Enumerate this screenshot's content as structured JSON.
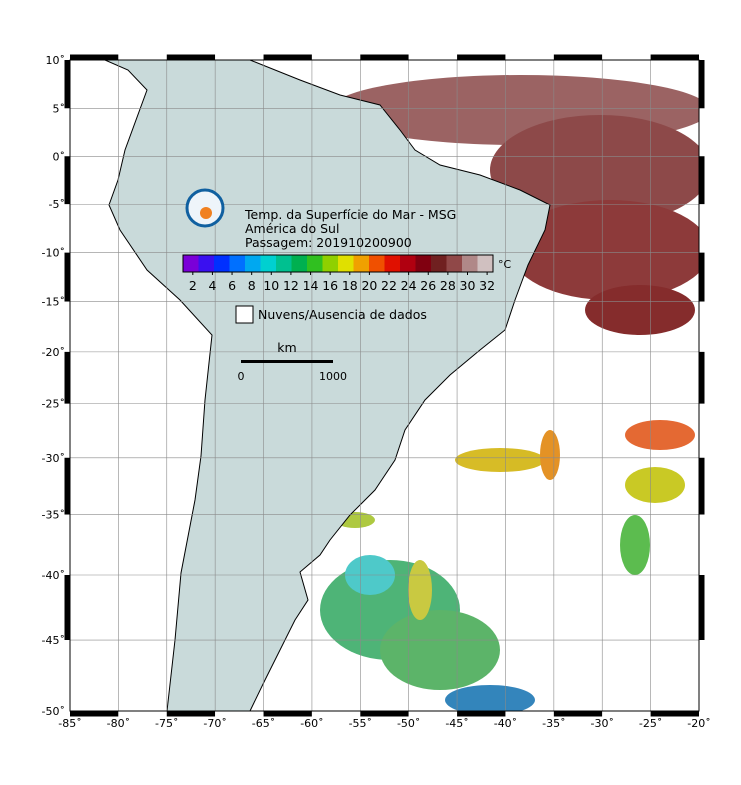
{
  "title_lines": [
    "Temp. da Superfície do Mar - MSG",
    "América do Sul",
    "Passagem: 201910200900"
  ],
  "map": {
    "xlim": [
      -85,
      -20
    ],
    "ylim": [
      -50,
      10
    ],
    "xticks": [
      {
        "value": -85,
        "label": "-85˚"
      },
      {
        "value": -80,
        "label": "-80˚"
      },
      {
        "value": -75,
        "label": "-75˚"
      },
      {
        "value": -70,
        "label": "-70˚"
      },
      {
        "value": -65,
        "label": "-65˚"
      },
      {
        "value": -60,
        "label": "-60˚"
      },
      {
        "value": -55,
        "label": "-55˚"
      },
      {
        "value": -50,
        "label": "-50˚"
      },
      {
        "value": -45,
        "label": "-45˚"
      },
      {
        "value": -40,
        "label": "-40˚"
      },
      {
        "value": -35,
        "label": "-35˚"
      },
      {
        "value": -30,
        "label": "-30˚"
      },
      {
        "value": -25,
        "label": "-25˚"
      },
      {
        "value": -20,
        "label": "-20˚"
      }
    ],
    "yticks": [
      {
        "value": 10,
        "label": "10˚"
      },
      {
        "value": 5,
        "label": "5˚"
      },
      {
        "value": 0,
        "label": "0˚"
      },
      {
        "value": -5,
        "label": "-5˚"
      },
      {
        "value": -10,
        "label": "-10˚"
      },
      {
        "value": -15,
        "label": "-15˚"
      },
      {
        "value": -20,
        "label": "-20˚"
      },
      {
        "value": -25,
        "label": "-25˚"
      },
      {
        "value": -30,
        "label": "-30˚"
      },
      {
        "value": -35,
        "label": "-35˚"
      },
      {
        "value": -40,
        "label": "-40˚"
      },
      {
        "value": -45,
        "label": "-45˚"
      },
      {
        "value": -50,
        "label": "-50˚"
      }
    ]
  },
  "colorbar": {
    "unit": "°C",
    "clim": [
      1,
      32.6
    ],
    "ticks": [
      2,
      4,
      6,
      8,
      10,
      12,
      14,
      16,
      18,
      20,
      22,
      24,
      26,
      28,
      30,
      32
    ],
    "colors": [
      "#7a00d8",
      "#3a10f0",
      "#0030ff",
      "#0070ff",
      "#00a8f0",
      "#00d0d0",
      "#00c090",
      "#00b050",
      "#30c020",
      "#90d000",
      "#e0e000",
      "#f0a000",
      "#f05000",
      "#e01000",
      "#b00010",
      "#800010",
      "#702020",
      "#904848",
      "#b08888",
      "#d0c0c0"
    ]
  },
  "legend": {
    "label": "Nuvens/Ausencia de dados"
  },
  "scale_bar": {
    "unit": "km",
    "labels": [
      0,
      1000
    ]
  }
}
